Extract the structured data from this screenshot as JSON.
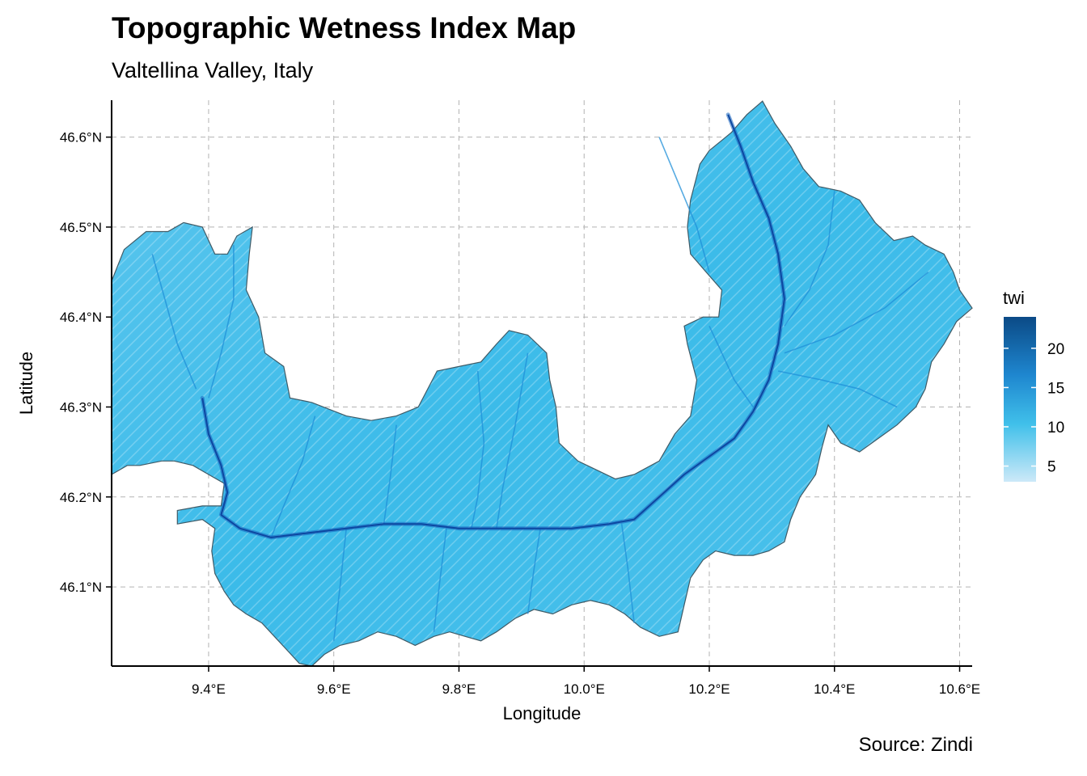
{
  "title": "Topographic Wetness Index Map",
  "subtitle": "Valtellina Valley, Italy",
  "caption": "Source: Zindi",
  "colors": {
    "fill_low": "#cde9f8",
    "fill_mid": "#29b6e8",
    "fill_high": "#0b4a86",
    "border": "#3f5a66",
    "grid": "#b3b3b3",
    "river": "#1565c0"
  },
  "chart_data": {
    "type": "map",
    "title": "Topographic Wetness Index Map",
    "subtitle": "Valtellina Valley, Italy",
    "xlabel": "Longitude",
    "ylabel": "Latitude",
    "xlim": [
      9.245,
      10.62
    ],
    "ylim": [
      46.012,
      46.641
    ],
    "x_ticks": [
      9.4,
      9.6,
      9.8,
      10.0,
      10.2,
      10.4,
      10.6
    ],
    "x_tick_labels": [
      "9.4°E",
      "9.6°E",
      "9.8°E",
      "10.0°E",
      "10.2°E",
      "10.4°E",
      "10.6°E"
    ],
    "y_ticks": [
      46.1,
      46.2,
      46.3,
      46.4,
      46.5,
      46.6
    ],
    "y_tick_labels": [
      "46.1°N",
      "46.2°N",
      "46.3°N",
      "46.4°N",
      "46.5°N",
      "46.6°N"
    ],
    "grid": true,
    "legend": {
      "title": "twi",
      "placement": "right",
      "range": [
        3,
        24
      ],
      "ticks": [
        5,
        10,
        15,
        20
      ],
      "tick_labels": [
        "5",
        "10",
        "15",
        "20"
      ]
    },
    "region_outline": [
      [
        9.245,
        46.44
      ],
      [
        9.265,
        46.475
      ],
      [
        9.3,
        46.495
      ],
      [
        9.335,
        46.495
      ],
      [
        9.36,
        46.505
      ],
      [
        9.39,
        46.5
      ],
      [
        9.41,
        46.47
      ],
      [
        9.43,
        46.47
      ],
      [
        9.445,
        46.49
      ],
      [
        9.47,
        46.5
      ],
      [
        9.465,
        46.47
      ],
      [
        9.46,
        46.43
      ],
      [
        9.48,
        46.4
      ],
      [
        9.49,
        46.36
      ],
      [
        9.52,
        46.345
      ],
      [
        9.53,
        46.31
      ],
      [
        9.565,
        46.305
      ],
      [
        9.62,
        46.29
      ],
      [
        9.66,
        46.285
      ],
      [
        9.7,
        46.29
      ],
      [
        9.735,
        46.3
      ],
      [
        9.765,
        46.34
      ],
      [
        9.8,
        46.345
      ],
      [
        9.835,
        46.35
      ],
      [
        9.86,
        46.37
      ],
      [
        9.88,
        46.385
      ],
      [
        9.91,
        46.38
      ],
      [
        9.94,
        46.36
      ],
      [
        9.945,
        46.33
      ],
      [
        9.955,
        46.3
      ],
      [
        9.96,
        46.26
      ],
      [
        9.99,
        46.24
      ],
      [
        10.02,
        46.23
      ],
      [
        10.05,
        46.22
      ],
      [
        10.08,
        46.225
      ],
      [
        10.12,
        46.24
      ],
      [
        10.145,
        46.27
      ],
      [
        10.17,
        46.29
      ],
      [
        10.18,
        46.33
      ],
      [
        10.165,
        46.37
      ],
      [
        10.16,
        46.39
      ],
      [
        10.19,
        46.4
      ],
      [
        10.215,
        46.4
      ],
      [
        10.22,
        46.43
      ],
      [
        10.195,
        46.45
      ],
      [
        10.17,
        46.47
      ],
      [
        10.165,
        46.5
      ],
      [
        10.17,
        46.53
      ],
      [
        10.185,
        46.57
      ],
      [
        10.2,
        46.585
      ],
      [
        10.235,
        46.605
      ],
      [
        10.26,
        46.625
      ],
      [
        10.285,
        46.64
      ],
      [
        10.305,
        46.615
      ],
      [
        10.33,
        46.59
      ],
      [
        10.35,
        46.565
      ],
      [
        10.375,
        46.545
      ],
      [
        10.41,
        46.54
      ],
      [
        10.44,
        46.53
      ],
      [
        10.465,
        46.505
      ],
      [
        10.495,
        46.485
      ],
      [
        10.525,
        46.49
      ],
      [
        10.545,
        46.48
      ],
      [
        10.575,
        46.47
      ],
      [
        10.59,
        46.45
      ],
      [
        10.6,
        46.43
      ],
      [
        10.62,
        46.41
      ],
      [
        10.595,
        46.395
      ],
      [
        10.575,
        46.37
      ],
      [
        10.555,
        46.35
      ],
      [
        10.545,
        46.32
      ],
      [
        10.53,
        46.3
      ],
      [
        10.5,
        46.28
      ],
      [
        10.47,
        46.265
      ],
      [
        10.44,
        46.25
      ],
      [
        10.41,
        46.26
      ],
      [
        10.39,
        46.28
      ],
      [
        10.38,
        46.255
      ],
      [
        10.37,
        46.225
      ],
      [
        10.345,
        46.2
      ],
      [
        10.33,
        46.175
      ],
      [
        10.32,
        46.15
      ],
      [
        10.295,
        46.14
      ],
      [
        10.27,
        46.135
      ],
      [
        10.24,
        46.135
      ],
      [
        10.21,
        46.14
      ],
      [
        10.19,
        46.13
      ],
      [
        10.17,
        46.11
      ],
      [
        10.16,
        46.08
      ],
      [
        10.15,
        46.05
      ],
      [
        10.12,
        46.045
      ],
      [
        10.09,
        46.055
      ],
      [
        10.065,
        46.07
      ],
      [
        10.04,
        46.08
      ],
      [
        10.01,
        46.085
      ],
      [
        9.98,
        46.08
      ],
      [
        9.95,
        46.07
      ],
      [
        9.92,
        46.075
      ],
      [
        9.89,
        46.065
      ],
      [
        9.86,
        46.05
      ],
      [
        9.835,
        46.04
      ],
      [
        9.81,
        46.045
      ],
      [
        9.785,
        46.05
      ],
      [
        9.76,
        46.045
      ],
      [
        9.73,
        46.035
      ],
      [
        9.7,
        46.045
      ],
      [
        9.67,
        46.05
      ],
      [
        9.64,
        46.04
      ],
      [
        9.61,
        46.035
      ],
      [
        9.585,
        46.025
      ],
      [
        9.565,
        46.012
      ],
      [
        9.545,
        46.015
      ],
      [
        9.525,
        46.03
      ],
      [
        9.505,
        46.045
      ],
      [
        9.485,
        46.06
      ],
      [
        9.46,
        46.07
      ],
      [
        9.44,
        46.08
      ],
      [
        9.425,
        46.095
      ],
      [
        9.41,
        46.115
      ],
      [
        9.405,
        46.14
      ],
      [
        9.41,
        46.165
      ],
      [
        9.39,
        46.175
      ],
      [
        9.35,
        46.17
      ],
      [
        9.35,
        46.185
      ],
      [
        9.39,
        46.19
      ],
      [
        9.42,
        46.19
      ],
      [
        9.425,
        46.215
      ],
      [
        9.4,
        46.225
      ],
      [
        9.375,
        46.235
      ],
      [
        9.345,
        46.24
      ],
      [
        9.325,
        46.24
      ],
      [
        9.29,
        46.235
      ],
      [
        9.27,
        46.235
      ],
      [
        9.245,
        46.225
      ]
    ],
    "main_river": [
      [
        9.39,
        46.31
      ],
      [
        9.4,
        46.27
      ],
      [
        9.42,
        46.235
      ],
      [
        9.43,
        46.205
      ],
      [
        9.42,
        46.18
      ],
      [
        9.45,
        46.165
      ],
      [
        9.5,
        46.155
      ],
      [
        9.56,
        46.16
      ],
      [
        9.62,
        46.165
      ],
      [
        9.68,
        46.17
      ],
      [
        9.74,
        46.17
      ],
      [
        9.8,
        46.165
      ],
      [
        9.86,
        46.165
      ],
      [
        9.92,
        46.165
      ],
      [
        9.98,
        46.165
      ],
      [
        10.04,
        46.17
      ],
      [
        10.08,
        46.175
      ],
      [
        10.12,
        46.2
      ],
      [
        10.16,
        46.225
      ],
      [
        10.2,
        46.245
      ],
      [
        10.24,
        46.265
      ],
      [
        10.27,
        46.295
      ],
      [
        10.295,
        46.33
      ],
      [
        10.31,
        46.37
      ],
      [
        10.32,
        46.42
      ],
      [
        10.31,
        46.47
      ],
      [
        10.295,
        46.51
      ],
      [
        10.27,
        46.55
      ],
      [
        10.25,
        46.59
      ],
      [
        10.23,
        46.625
      ]
    ],
    "tributaries": [
      [
        [
          9.31,
          46.47
        ],
        [
          9.33,
          46.42
        ],
        [
          9.35,
          46.37
        ],
        [
          9.38,
          46.32
        ]
      ],
      [
        [
          9.44,
          46.48
        ],
        [
          9.44,
          46.42
        ],
        [
          9.42,
          46.36
        ],
        [
          9.4,
          46.31
        ]
      ],
      [
        [
          9.57,
          46.29
        ],
        [
          9.55,
          46.24
        ],
        [
          9.52,
          46.19
        ],
        [
          9.5,
          46.155
        ]
      ],
      [
        [
          9.7,
          46.28
        ],
        [
          9.69,
          46.22
        ],
        [
          9.68,
          46.17
        ]
      ],
      [
        [
          9.83,
          46.34
        ],
        [
          9.84,
          46.26
        ],
        [
          9.83,
          46.2
        ],
        [
          9.82,
          46.165
        ]
      ],
      [
        [
          9.91,
          46.36
        ],
        [
          9.89,
          46.28
        ],
        [
          9.87,
          46.21
        ],
        [
          9.86,
          46.165
        ]
      ],
      [
        [
          9.6,
          46.04
        ],
        [
          9.61,
          46.1
        ],
        [
          9.62,
          46.165
        ]
      ],
      [
        [
          9.76,
          46.05
        ],
        [
          9.77,
          46.11
        ],
        [
          9.78,
          46.165
        ]
      ],
      [
        [
          9.91,
          46.07
        ],
        [
          9.92,
          46.12
        ],
        [
          9.93,
          46.165
        ]
      ],
      [
        [
          10.08,
          46.06
        ],
        [
          10.07,
          46.12
        ],
        [
          10.06,
          46.17
        ]
      ],
      [
        [
          10.12,
          46.6
        ],
        [
          10.15,
          46.55
        ],
        [
          10.18,
          46.5
        ],
        [
          10.2,
          46.45
        ]
      ],
      [
        [
          10.4,
          46.54
        ],
        [
          10.39,
          46.48
        ],
        [
          10.36,
          46.43
        ],
        [
          10.32,
          46.39
        ]
      ],
      [
        [
          10.55,
          46.45
        ],
        [
          10.48,
          46.41
        ],
        [
          10.4,
          46.38
        ],
        [
          10.32,
          46.36
        ]
      ],
      [
        [
          10.5,
          46.3
        ],
        [
          10.44,
          46.32
        ],
        [
          10.38,
          46.33
        ],
        [
          10.31,
          46.34
        ]
      ],
      [
        [
          10.2,
          46.39
        ],
        [
          10.24,
          46.33
        ],
        [
          10.27,
          46.3
        ]
      ]
    ]
  }
}
